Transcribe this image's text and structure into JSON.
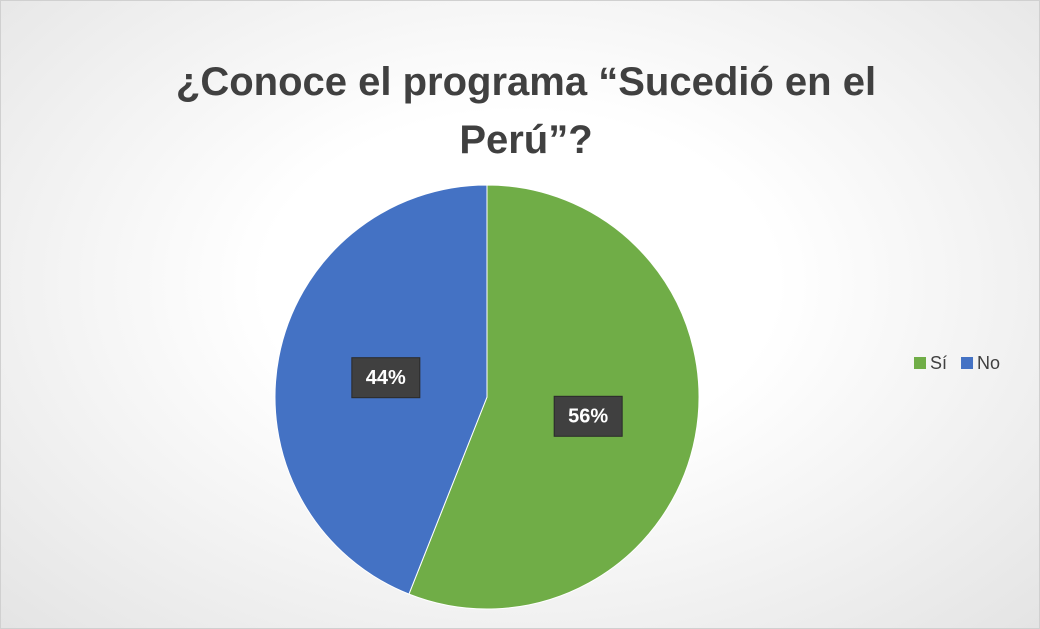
{
  "chart_data": {
    "type": "pie",
    "title": "¿Conoce el programa “Sucedió en el Perú”?",
    "categories": [
      "Sí",
      "No"
    ],
    "values": [
      56,
      44
    ],
    "value_labels": [
      "56%",
      "44%"
    ],
    "colors": [
      "#70ad47",
      "#4472c4"
    ],
    "legend": "right"
  }
}
